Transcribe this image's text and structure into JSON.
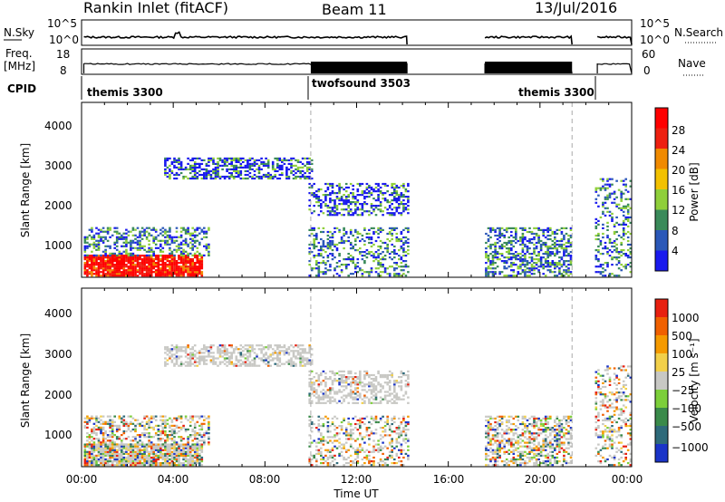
{
  "header": {
    "station": "Rankin Inlet (fitACF)",
    "beam": "Beam 11",
    "date": "13/Jul/2016"
  },
  "panels": {
    "nsky_label": "N.Sky",
    "nsearch_label": "N.Search",
    "nsky_ticks": [
      "10^5",
      "10^0"
    ],
    "nsearch_ticks": [
      "10^5",
      "10^0"
    ],
    "freq_label": "Freq.",
    "freq_unit": "[MHz]",
    "freq_ticks": [
      "18",
      "8"
    ],
    "nave_label": "Nave",
    "nave_ticks": [
      "60",
      "0"
    ],
    "cpid_label": "CPID",
    "cpid_modes": [
      {
        "name": "themis 3300",
        "start_hr": 0,
        "end_hr": 10
      },
      {
        "name": "twofsound 3503",
        "start_hr": 10,
        "end_hr": 21.4
      },
      {
        "name": "themis 3300",
        "start_hr": 21.4,
        "end_hr": 24
      }
    ]
  },
  "chart_data": [
    {
      "type": "heatmap",
      "name": "power",
      "ylabel": "Slant Range [km]",
      "yticks": [
        1000,
        2000,
        3000,
        4000
      ],
      "ylim": [
        180,
        4500
      ],
      "colorbar_label": "Power [dB]",
      "colorbar_ticks": [
        "4",
        "8",
        "12",
        "16",
        "20",
        "24",
        "28"
      ],
      "colors": [
        "#1a1aee",
        "#2b58b8",
        "#3a8a5a",
        "#8fcf3a",
        "#f2c100",
        "#f08a00",
        "#ee2010",
        "#ff0000"
      ],
      "data_gaps_hr": [
        [
          14.2,
          17.5
        ],
        [
          21.4,
          22.4
        ]
      ]
    },
    {
      "type": "heatmap",
      "name": "velocity",
      "ylabel": "Slant Range [km]",
      "yticks": [
        1000,
        2000,
        3000,
        4000
      ],
      "ylim": [
        180,
        4500
      ],
      "colorbar_label": "Velocity [m s⁻¹]",
      "colorbar_ticks": [
        "1000",
        "500",
        "100",
        "25",
        "−25",
        "−100",
        "−500",
        "−1000"
      ],
      "colors": [
        "#1a34c8",
        "#2e6a7a",
        "#3a8a4a",
        "#7ccf3a",
        "#c8c8c4",
        "#f2d04a",
        "#f59a00",
        "#f06000",
        "#e82010"
      ],
      "data_gaps_hr": [
        [
          14.2,
          17.5
        ],
        [
          21.4,
          22.4
        ]
      ]
    }
  ],
  "xaxis": {
    "label": "Time UT",
    "ticks": [
      "00:00",
      "04:00",
      "08:00",
      "12:00",
      "16:00",
      "20:00",
      "00:00"
    ],
    "range_hr": [
      0,
      24
    ]
  }
}
